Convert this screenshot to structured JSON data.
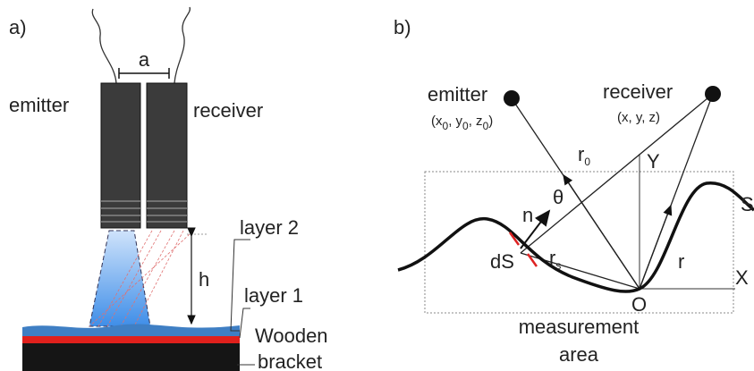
{
  "panel_a": {
    "label": "a)",
    "spacing_label": "a",
    "emitter": "emitter",
    "receiver": "receiver",
    "height_label": "h",
    "layer_2": "layer 2",
    "layer_1": "layer 1",
    "bracket": [
      "Wooden",
      "bracket"
    ]
  },
  "panel_b": {
    "label": "b)",
    "emitter": "emitter",
    "emitter_coords": [
      "(x",
      "0",
      ", y",
      "0",
      ", z",
      "0",
      ")"
    ],
    "receiver": "receiver",
    "receiver_coords": "(x, y, z)",
    "r0": [
      "r",
      "0"
    ],
    "normal": "n",
    "angle": "θ",
    "y_axis": "Y",
    "surface": "S",
    "ds": "dS",
    "rs": [
      "r",
      "s"
    ],
    "r": "r",
    "x_axis": "X",
    "origin": "O",
    "area": [
      "measurement",
      "area"
    ]
  }
}
